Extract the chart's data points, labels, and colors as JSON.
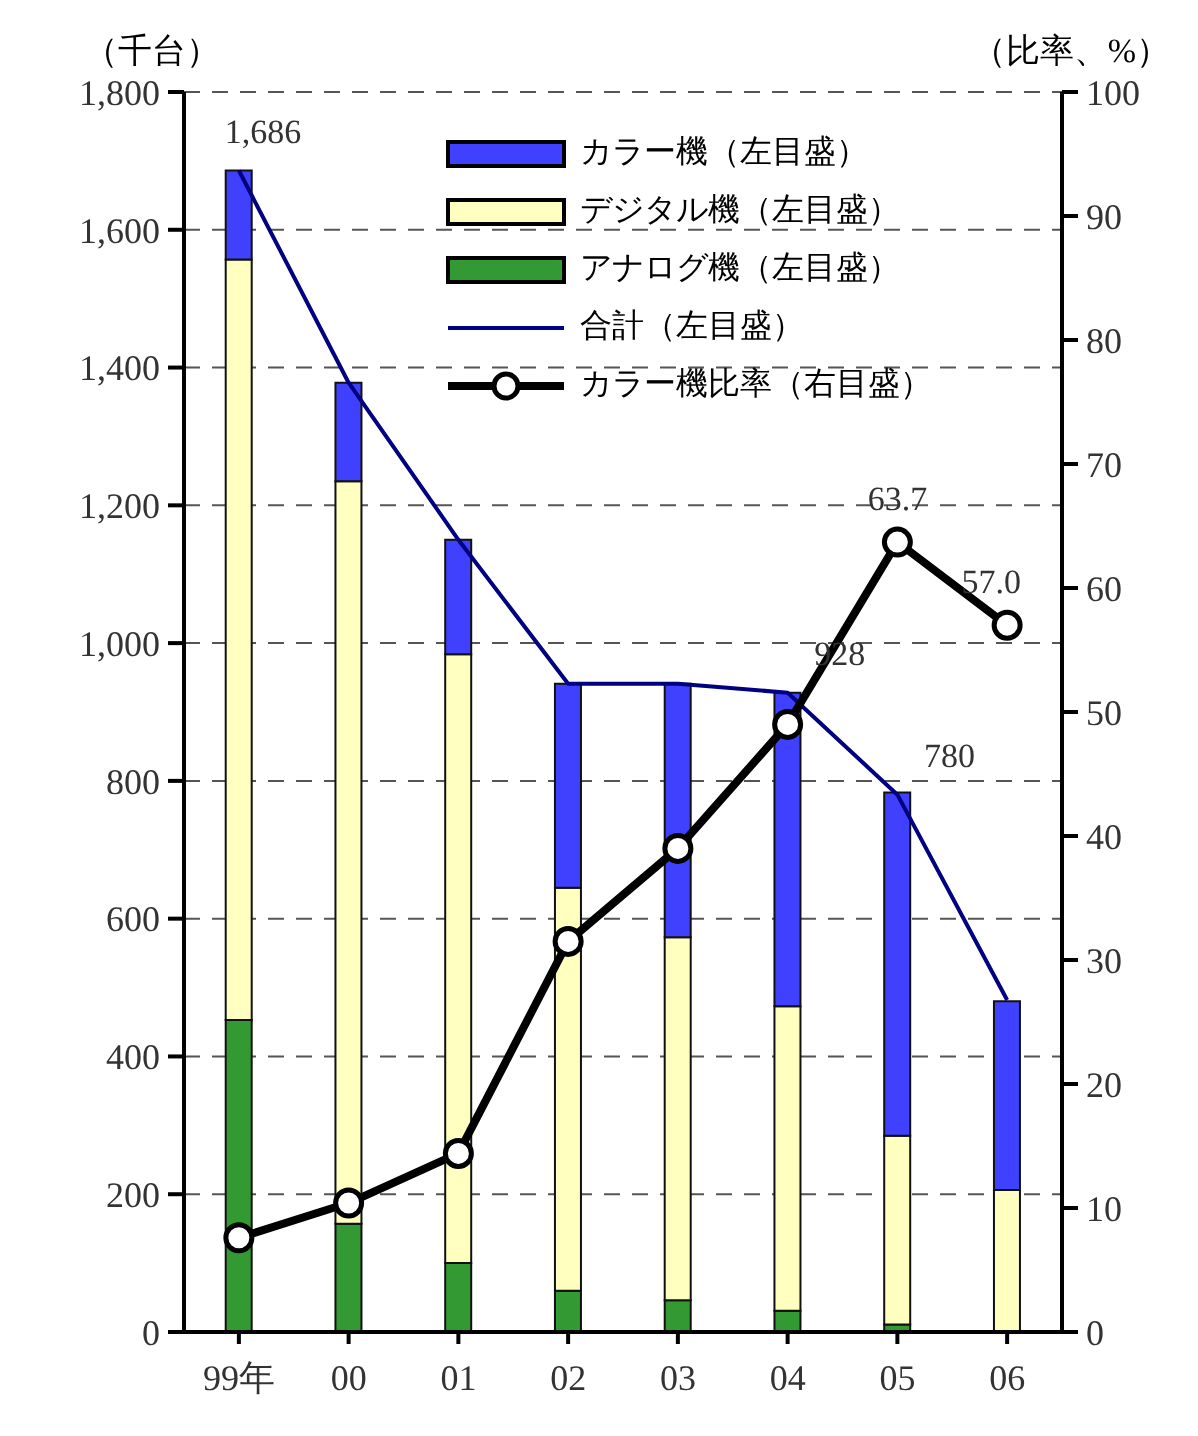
{
  "chart_data": {
    "type": "bar",
    "stacked": true,
    "ylabel": "（千台）",
    "y2label": "（比率、%）",
    "categories": [
      "99年",
      "00",
      "01",
      "02",
      "03",
      "04",
      "05",
      "06"
    ],
    "series": [
      {
        "name": "アナログ機（左目盛）",
        "color": "#339933",
        "values": [
          453,
          157,
          100,
          60,
          46,
          31,
          11,
          null
        ]
      },
      {
        "name": "デジタル機（左目盛）",
        "color": "#ffffc0",
        "values": [
          1104,
          1078,
          884,
          585,
          527,
          442,
          274,
          206
        ]
      },
      {
        "name": "カラー機（左目盛）",
        "color": "#4040ff",
        "values": [
          129,
          143,
          166,
          296,
          368,
          455,
          498,
          274
        ]
      },
      {
        "name": "合計（左目盛）",
        "type": "line",
        "color": "#000080",
        "marker": "none",
        "values": [
          1686,
          1378,
          1150,
          941,
          941,
          928,
          780,
          482
        ],
        "value_labels": [
          "1,686",
          null,
          null,
          null,
          null,
          "928",
          "780",
          null
        ]
      },
      {
        "name": "カラー機比率（右目盛）",
        "type": "line",
        "axis": "y2",
        "color": "#000000",
        "marker": "circle",
        "values": [
          7.6,
          10.4,
          14.4,
          31.5,
          39.0,
          49.0,
          63.7,
          57.0
        ],
        "value_labels": [
          null,
          null,
          null,
          null,
          null,
          null,
          "63.7",
          "57.0"
        ]
      }
    ],
    "ylim": [
      0,
      1800
    ],
    "yticks": [
      0,
      200,
      400,
      600,
      800,
      {
        "value": 1000,
        "label": "1,000"
      },
      {
        "value": 1200,
        "label": "1,200"
      },
      {
        "value": 1400,
        "label": "1,400"
      },
      {
        "value": 1600,
        "label": "1,600"
      },
      {
        "value": 1800,
        "label": "1,800"
      }
    ],
    "y2lim": [
      0,
      100
    ],
    "y2ticks": [
      0,
      10,
      20,
      30,
      40,
      50,
      60,
      70,
      80,
      90,
      100
    ],
    "grid": "y",
    "legend": "top right",
    "line_style": "solid"
  }
}
